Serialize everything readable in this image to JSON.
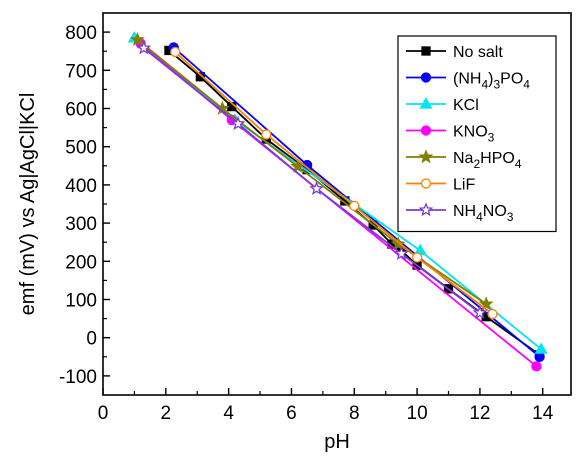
{
  "chart_data": {
    "type": "line",
    "title": "",
    "xlabel": "pH",
    "ylabel": "emf (mV) vs Ag|AgCl|KCl",
    "xlim": [
      0,
      14.9
    ],
    "ylim": [
      -150,
      850
    ],
    "xticks": [
      0,
      2,
      4,
      6,
      8,
      10,
      12,
      14
    ],
    "yticks": [
      -100,
      0,
      100,
      200,
      300,
      400,
      500,
      600,
      700,
      800
    ],
    "grid": false,
    "legend_position": "top-right",
    "series": [
      {
        "name_parts": [
          {
            "t": "No salt"
          }
        ],
        "color": "#000000",
        "marker": "square",
        "filled": true,
        "points": [
          [
            2.1,
            752
          ],
          [
            3.1,
            683
          ],
          [
            4.1,
            605
          ],
          [
            5.2,
            520
          ],
          [
            6.5,
            440
          ],
          [
            7.7,
            358
          ],
          [
            8.6,
            295
          ],
          [
            9.2,
            245
          ],
          [
            9.5,
            228
          ],
          [
            10.0,
            190
          ],
          [
            11.0,
            128
          ],
          [
            12.2,
            55
          ],
          [
            13.9,
            -45
          ]
        ]
      },
      {
        "name_parts": [
          {
            "t": "(NH"
          },
          {
            "t": "4",
            "sub": true
          },
          {
            "t": ")"
          },
          {
            "t": "3",
            "sub": true
          },
          {
            "t": "PO"
          },
          {
            "t": "4",
            "sub": true
          }
        ],
        "color": "#0000ff",
        "marker": "circle",
        "filled": true,
        "points": [
          [
            2.25,
            760
          ],
          [
            6.5,
            452
          ],
          [
            13.9,
            -50
          ]
        ]
      },
      {
        "name_parts": [
          {
            "t": "KCl"
          }
        ],
        "color": "#00e5ee",
        "marker": "triangle",
        "filled": true,
        "points": [
          [
            1.0,
            785
          ],
          [
            4.2,
            570
          ],
          [
            10.1,
            228
          ],
          [
            13.95,
            -30
          ]
        ]
      },
      {
        "name_parts": [
          {
            "t": "KNO"
          },
          {
            "t": "3",
            "sub": true
          }
        ],
        "color": "#ff00ff",
        "marker": "circle",
        "filled": true,
        "points": [
          [
            1.2,
            770
          ],
          [
            4.1,
            570
          ],
          [
            13.8,
            -75
          ]
        ]
      },
      {
        "name_parts": [
          {
            "t": "Na"
          },
          {
            "t": "2",
            "sub": true
          },
          {
            "t": "HPO"
          },
          {
            "t": "4",
            "sub": true
          }
        ],
        "color": "#808000",
        "marker": "star",
        "filled": true,
        "points": [
          [
            1.1,
            780
          ],
          [
            3.8,
            600
          ],
          [
            6.2,
            448
          ],
          [
            9.4,
            245
          ],
          [
            12.2,
            88
          ]
        ]
      },
      {
        "name_parts": [
          {
            "t": "LiF"
          }
        ],
        "color": "#ff7f00",
        "marker": "circle",
        "filled": false,
        "points": [
          [
            2.3,
            748
          ],
          [
            5.2,
            532
          ],
          [
            8.0,
            345
          ],
          [
            10.0,
            210
          ],
          [
            12.4,
            62
          ]
        ]
      },
      {
        "name_parts": [
          {
            "t": "NH"
          },
          {
            "t": "4",
            "sub": true
          },
          {
            "t": "NO"
          },
          {
            "t": "3",
            "sub": true
          }
        ],
        "color": "#7a3bd8",
        "marker": "star",
        "filled": false,
        "points": [
          [
            1.3,
            758
          ],
          [
            4.3,
            560
          ],
          [
            6.8,
            390
          ],
          [
            9.5,
            220
          ],
          [
            12.0,
            65
          ]
        ]
      }
    ]
  }
}
